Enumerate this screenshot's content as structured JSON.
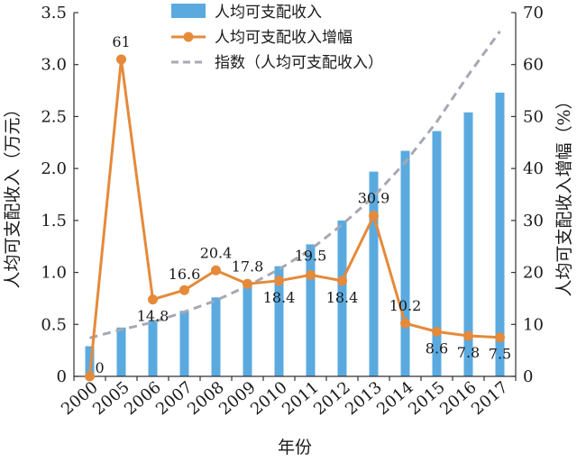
{
  "chart_data": {
    "type": "bar",
    "categories": [
      "2000",
      "2005",
      "2006",
      "2007",
      "2008",
      "2009",
      "2010",
      "2011",
      "2012",
      "2013",
      "2014",
      "2015",
      "2016",
      "2017"
    ],
    "xlabel": "年份",
    "ylabel_left": "人均可支配收入（万元）",
    "ylabel_right": "人均可支配收入增幅（%）",
    "ylim_left": [
      0,
      3.5
    ],
    "ylim_right": [
      0,
      70
    ],
    "yticks_left": [
      "0",
      "0.5",
      "1.0",
      "1.5",
      "2.0",
      "2.5",
      "3.0",
      "3.5"
    ],
    "yticks_right": [
      "0",
      "10",
      "20",
      "30",
      "40",
      "50",
      "60",
      "70"
    ],
    "grid": false,
    "legend_position": "top-center",
    "series": [
      {
        "name": "人均可支配收入",
        "type": "bar",
        "axis": "left",
        "color": "#5aaae0",
        "values": [
          0.29,
          0.47,
          0.54,
          0.63,
          0.76,
          0.9,
          1.06,
          1.27,
          1.5,
          1.97,
          2.17,
          2.36,
          2.54,
          2.73
        ]
      },
      {
        "name": "人均可支配收入增幅",
        "type": "line",
        "axis": "right",
        "color": "#e58a3a",
        "values": [
          0,
          61,
          14.8,
          16.6,
          20.4,
          17.8,
          18.4,
          19.5,
          18.4,
          30.9,
          10.2,
          8.6,
          7.8,
          7.5
        ],
        "labels": [
          "0",
          "61",
          "14.8",
          "16.6",
          "20.4",
          "17.8",
          "18.4",
          "19.5",
          "18.4",
          "30.9",
          "10.2",
          "8.6",
          "7.8",
          "7.5"
        ]
      },
      {
        "name": "指数（人均可支配收入）",
        "type": "line-dashed",
        "axis": "left",
        "color": "#a6a8b3",
        "values": [
          0.37,
          0.45,
          0.52,
          0.62,
          0.73,
          0.87,
          1.03,
          1.22,
          1.46,
          1.73,
          2.06,
          2.45,
          2.9,
          3.32
        ]
      }
    ]
  }
}
